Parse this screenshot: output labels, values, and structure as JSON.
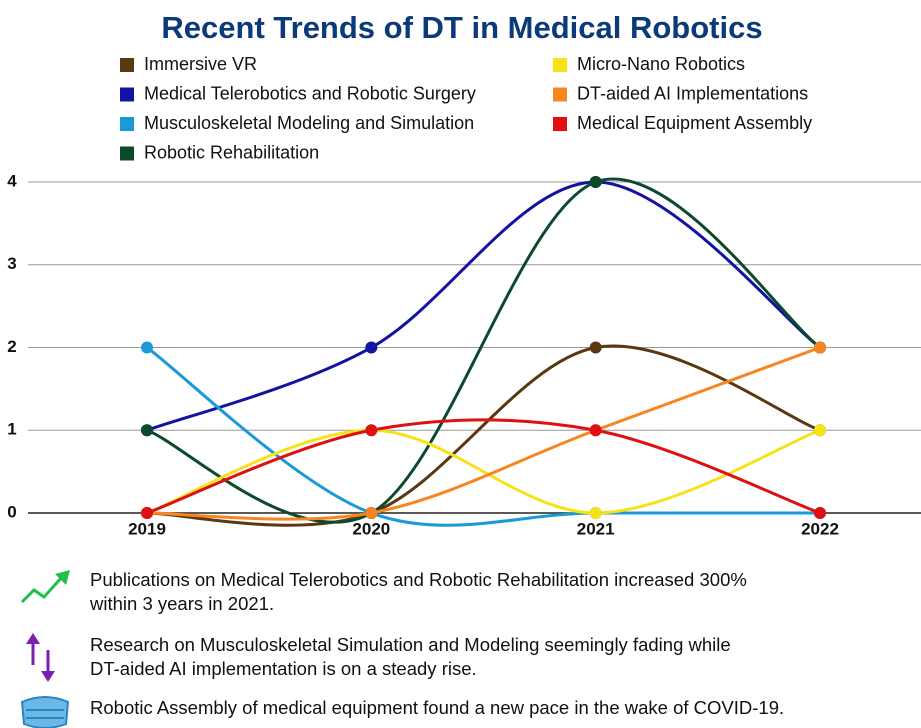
{
  "chart_data": {
    "type": "line",
    "title": "Recent Trends of DT in Medical Robotics",
    "categories": [
      "2019",
      "2020",
      "2021",
      "2022"
    ],
    "ylim": [
      0,
      4
    ],
    "yticks": [
      0,
      1,
      2,
      3,
      4
    ],
    "grid": true,
    "smooth": true,
    "series": [
      {
        "name": "Immersive VR",
        "color": "#5a3811",
        "values": [
          0,
          0,
          2,
          1
        ]
      },
      {
        "name": "Medical Telerobotics and Robotic Surgery",
        "color": "#1313a3",
        "values": [
          1,
          2,
          4,
          2
        ]
      },
      {
        "name": "Musculoskeletal Modeling and Simulation",
        "color": "#1b9ad8",
        "values": [
          2,
          0,
          0,
          0
        ]
      },
      {
        "name": "Robotic Rehabilitation",
        "color": "#0b4a2a",
        "values": [
          1,
          0,
          4,
          2
        ]
      },
      {
        "name": "Micro-Nano Robotics",
        "color": "#f7e21a",
        "values": [
          0,
          1,
          0,
          1
        ]
      },
      {
        "name": "DT-aided AI Implementations",
        "color": "#f7861f",
        "values": [
          0,
          0,
          1,
          2
        ]
      },
      {
        "name": "Medical Equipment Assembly",
        "color": "#dd1111",
        "values": [
          0,
          1,
          1,
          0
        ]
      }
    ],
    "annotations": [
      [
        "Publications on Medical Telerobotics and Robotic Rehabilitation increased 300%",
        "within 3 years in 2021."
      ],
      [
        "Research on Musculoskeletal Simulation and Modeling seemingly fading while",
        "DT-aided AI implementation is on a steady rise."
      ],
      [
        "Robotic Assembly of medical equipment found a new pace in the wake of COVID-19."
      ]
    ]
  }
}
